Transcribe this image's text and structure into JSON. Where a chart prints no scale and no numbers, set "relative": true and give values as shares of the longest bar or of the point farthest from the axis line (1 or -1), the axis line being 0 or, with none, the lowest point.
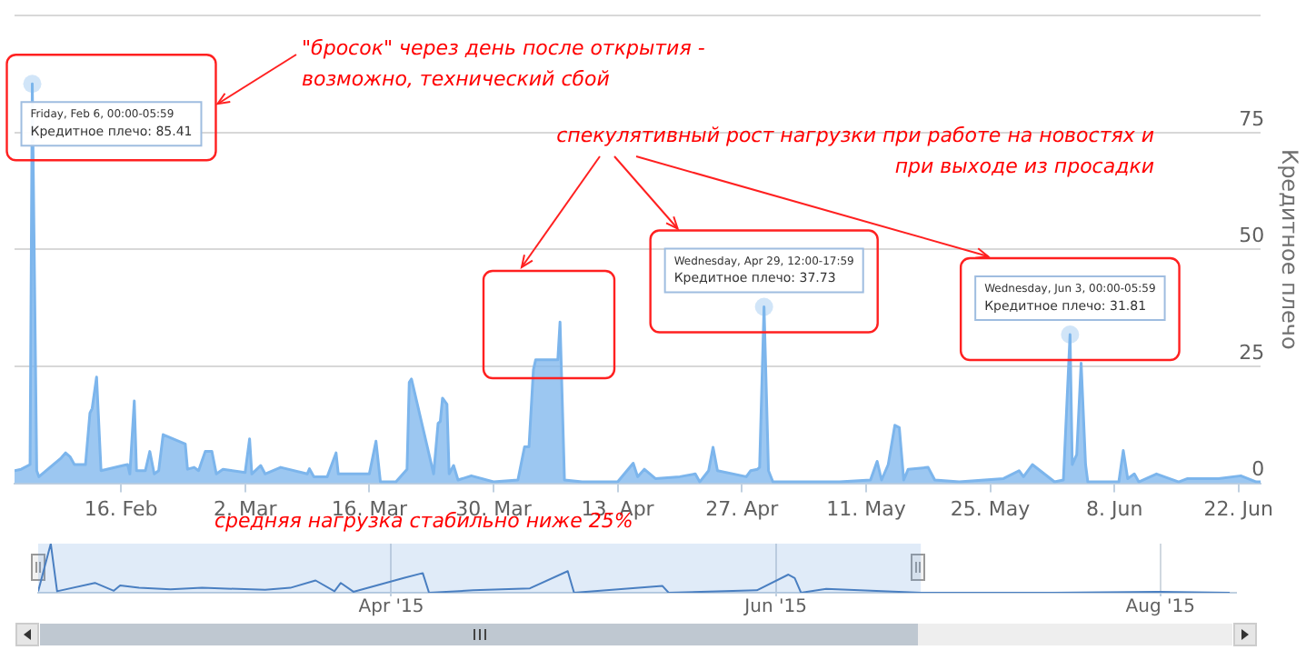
{
  "chart_data": [
    {
      "type": "area",
      "ylabel": "Кредитное плечо",
      "x": [
        "2015-02-04T00:00",
        "2015-02-04T18:00",
        "2015-02-05T18:00",
        "2015-02-06T00:00",
        "2015-02-06T12:00",
        "2015-02-06T18:00",
        "2015-02-09T06:00",
        "2015-02-09T18:00",
        "2015-02-10T06:00",
        "2015-02-10T18:00",
        "2015-02-12T00:00",
        "2015-02-12T12:00",
        "2015-02-12T18:00",
        "2015-02-13T06:00",
        "2015-02-13T18:00",
        "2015-02-16T06:00",
        "2015-02-16T18:00",
        "2015-02-17T00:00",
        "2015-02-17T12:00",
        "2015-02-17T18:00",
        "2015-02-18T18:00",
        "2015-02-19T06:00",
        "2015-02-19T18:00",
        "2015-02-20T06:00",
        "2015-02-20T18:00",
        "2015-02-23T06:00",
        "2015-02-23T12:00",
        "2015-02-24T06:00",
        "2015-02-24T18:00",
        "2015-02-25T12:00",
        "2015-02-26T06:00",
        "2015-02-26T18:00",
        "2015-02-27T12:00",
        "2015-03-02T00:00",
        "2015-03-02T12:00",
        "2015-03-02T18:00",
        "2015-03-03T18:00",
        "2015-03-04T06:00",
        "2015-03-06T00:00",
        "2015-03-09T00:00",
        "2015-03-09T06:00",
        "2015-03-09T18:00",
        "2015-03-11T06:00",
        "2015-03-12T06:00",
        "2015-03-12T12:00",
        "2015-03-16T00:00",
        "2015-03-16T18:00",
        "2015-03-17T06:00",
        "2015-03-19T00:00",
        "2015-03-20T06:00",
        "2015-03-20T12:00",
        "2015-03-20T18:00",
        "2015-03-23T06:00",
        "2015-03-23T18:00",
        "2015-03-24T00:00",
        "2015-03-24T06:00",
        "2015-03-24T18:00",
        "2015-03-25T00:00",
        "2015-03-25T12:00",
        "2015-03-26T00:00",
        "2015-03-27T12:00",
        "2015-03-30T00:00",
        "2015-04-01T18:00",
        "2015-04-02T12:00",
        "2015-04-03T00:00",
        "2015-04-03T12:00",
        "2015-04-03T18:00",
        "2015-04-06T06:00",
        "2015-04-06T12:00",
        "2015-04-07T00:00",
        "2015-04-09T00:00",
        "2015-04-13T00:00",
        "2015-04-14T18:00",
        "2015-04-15T06:00",
        "2015-04-16T00:00",
        "2015-04-17T06:00",
        "2015-04-20T00:00",
        "2015-04-21T18:00",
        "2015-04-22T06:00",
        "2015-04-23T06:00",
        "2015-04-23T18:00",
        "2015-04-24T06:00",
        "2015-04-27T12:00",
        "2015-04-28T00:00",
        "2015-04-28T18:00",
        "2015-04-29T00:00",
        "2015-04-29T12:00",
        "2015-04-30T00:00",
        "2015-04-30T12:00",
        "2015-05-08T00:00",
        "2015-05-11T12:00",
        "2015-05-12T06:00",
        "2015-05-12T18:00",
        "2015-05-13T12:00",
        "2015-05-14T06:00",
        "2015-05-14T18:00",
        "2015-05-15T06:00",
        "2015-05-15T18:00",
        "2015-05-18T00:00",
        "2015-05-18T18:00",
        "2015-05-21T12:00",
        "2015-05-26T12:00",
        "2015-05-28T06:00",
        "2015-05-28T18:00",
        "2015-05-29T18:00",
        "2015-06-01T06:00",
        "2015-06-02T06:00",
        "2015-06-03T00:00",
        "2015-06-03T06:00",
        "2015-06-03T18:00",
        "2015-06-04T06:00",
        "2015-06-04T18:00",
        "2015-06-05T00:00",
        "2015-06-08T12:00",
        "2015-06-09T00:00",
        "2015-06-09T12:00",
        "2015-06-10T06:00",
        "2015-06-10T18:00",
        "2015-06-12T18:00",
        "2015-06-15T06:00",
        "2015-06-16T06:00",
        "2015-06-19T18:00",
        "2015-06-22T06:00",
        "2015-06-24T00:00",
        "2015-06-24T12:00"
      ],
      "series": [
        {
          "color": "#7cb5ec",
          "values": [
            2.7,
            3,
            4,
            85.41,
            2.7,
            1.4,
            5.4,
            6.5,
            5.7,
            4,
            4,
            15,
            16,
            22.7,
            2.7,
            3.8,
            4,
            2,
            17.6,
            2.7,
            2.7,
            6.8,
            2,
            2.7,
            10.4,
            8.4,
            3,
            3.4,
            2.7,
            6.8,
            6.8,
            2,
            3,
            2.3,
            9.5,
            2,
            3.8,
            2,
            3.4,
            2,
            3.1,
            1.4,
            1.4,
            6.5,
            2,
            2,
            9,
            0.3,
            0.3,
            3,
            21.6,
            22.3,
            2,
            12.8,
            13.2,
            18.2,
            16.9,
            2,
            3.8,
            0.7,
            1.6,
            0.3,
            0.7,
            7.8,
            7.8,
            24.3,
            26.4,
            26.4,
            34.5,
            0.7,
            0.3,
            0.3,
            4.3,
            1.4,
            3,
            1,
            1.4,
            2,
            0.3,
            2.7,
            7.7,
            2.7,
            1.4,
            2.7,
            3,
            3.4,
            37.73,
            2.7,
            0.3,
            0.3,
            0.7,
            4.7,
            0.7,
            4,
            12.4,
            11.9,
            0.7,
            3,
            3.4,
            0.7,
            0.3,
            1,
            2.7,
            1.4,
            4,
            0.3,
            0.7,
            31.81,
            4,
            6.1,
            25.7,
            4,
            0.3,
            0.3,
            7,
            1,
            2,
            0.3,
            2,
            0.3,
            1,
            1,
            1.6,
            0.3,
            0.3
          ]
        }
      ],
      "xlim": [
        "2015-02-04T00:00",
        "2015-06-24T12:00"
      ],
      "xticks": [
        {
          "value": "2015-02-16",
          "label": "16. Feb"
        },
        {
          "value": "2015-03-02",
          "label": "2. Mar"
        },
        {
          "value": "2015-03-16",
          "label": "16. Mar"
        },
        {
          "value": "2015-03-30",
          "label": "30. Mar"
        },
        {
          "value": "2015-04-13",
          "label": "13. Apr"
        },
        {
          "value": "2015-04-27",
          "label": "27. Apr"
        },
        {
          "value": "2015-05-11",
          "label": "11. May"
        },
        {
          "value": "2015-05-25",
          "label": "25. May"
        },
        {
          "value": "2015-06-08",
          "label": "8. Jun"
        },
        {
          "value": "2015-06-22",
          "label": "22. Jun"
        }
      ],
      "ylim": [
        0,
        100
      ],
      "yticks": [
        0,
        25,
        50,
        75,
        {
          "value": 100,
          "label": null
        }
      ],
      "grid": "y",
      "marker": "none",
      "annotations": [
        {
          "text": "Friday, Feb 6, 00:00-05:59\nКредитное плечо: 85.41",
          "x": "2015-02-06T00:00",
          "y": 85.41
        },
        {
          "text": "Wednesday, Apr 29, 12:00-17:59\nКредитное плечо: 37.73",
          "x": "2015-04-29T12:00",
          "y": 37.73
        },
        {
          "text": "Wednesday, Jun 3, 00:00-05:59\nКредитное плечо: 31.81",
          "x": "2015-06-03T00:00",
          "y": 31.81
        },
        "\"бросок\" через день после открытия - возможно, технический сбой",
        "спекулятивный рост нагрузки при работе на новостях и при выходе из просадки",
        "средняя нагрузка стабильно ниже 25%"
      ]
    },
    {
      "type": "line",
      "relative": true,
      "tick_labels": "x",
      "grid": "x",
      "marker": "none",
      "x": [
        "2015-02-04",
        "2015-02-06",
        "2015-02-07",
        "2015-02-13",
        "2015-02-16",
        "2015-02-17",
        "2015-02-20",
        "2015-02-25",
        "2015-03-02",
        "2015-03-12",
        "2015-03-16",
        "2015-03-20",
        "2015-03-23",
        "2015-03-24",
        "2015-03-26",
        "2015-04-03",
        "2015-04-06",
        "2015-04-07",
        "2015-04-14",
        "2015-04-23",
        "2015-04-29",
        "2015-04-30",
        "2015-05-14",
        "2015-05-15",
        "2015-05-29",
        "2015-06-03",
        "2015-06-04",
        "2015-06-05",
        "2015-06-09",
        "2015-06-24",
        "2015-07-15",
        "2015-08-01",
        "2015-08-12"
      ],
      "series": [
        {
          "color": "#4a7fc1",
          "values": [
            0.03,
            1,
            0.03,
            0.2,
            0.04,
            0.15,
            0.1,
            0.07,
            0.1,
            0.06,
            0.1,
            0.25,
            0.03,
            0.2,
            0.02,
            0.3,
            0.4,
            0,
            0.05,
            0.09,
            0.44,
            0,
            0.14,
            0,
            0.05,
            0.37,
            0.3,
            0,
            0.08,
            0,
            0,
            0.02,
            0
          ]
        }
      ],
      "xlim": [
        "2015-02-04",
        "2015-08-13"
      ],
      "bands": [
        {
          "axis": "x",
          "from": "2015-02-04",
          "to": "2015-06-24",
          "color": "#6699dd"
        }
      ],
      "xticks": [
        {
          "value": "2015-04-01",
          "label": "Apr '15"
        },
        {
          "value": "2015-06-01",
          "label": "Jun '15"
        },
        {
          "value": "2015-08-01",
          "label": "Aug '15"
        }
      ]
    }
  ]
}
